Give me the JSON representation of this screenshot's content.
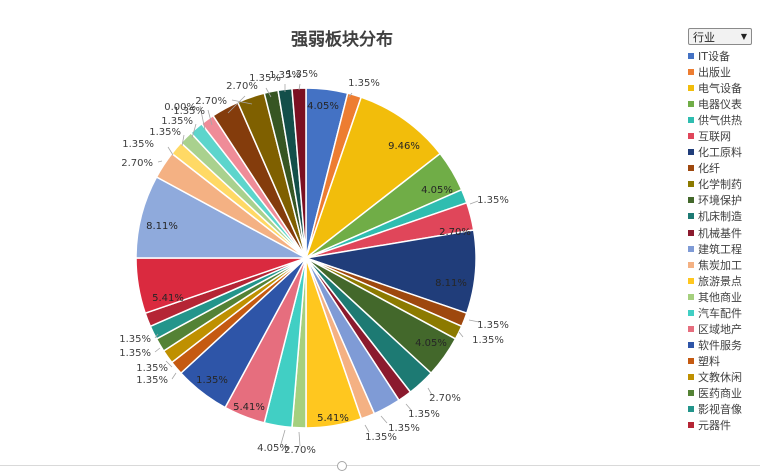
{
  "chart_data": {
    "type": "pie",
    "title": "强弱板块分布",
    "filter": {
      "label": "行业"
    },
    "slices": [
      {
        "name": "IT设备",
        "value": 4.05,
        "label": "4.05%",
        "color": "#4472C4"
      },
      {
        "name": "出版业",
        "value": 1.35,
        "label": "1.35%",
        "color": "#ED7D31"
      },
      {
        "name": "电气设备",
        "value": 9.46,
        "label": "9.46%",
        "color": "#F2BD0B"
      },
      {
        "name": "电器仪表",
        "value": 4.05,
        "label": "4.05%",
        "color": "#70AD47"
      },
      {
        "name": "供气供热",
        "value": 1.35,
        "label": "1.35%",
        "color": "#2FBDB0"
      },
      {
        "name": "互联网",
        "value": 2.7,
        "label": "2.70%",
        "color": "#E0465A"
      },
      {
        "name": "化工原料",
        "value": 8.11,
        "label": "8.11%",
        "color": "#203D7A"
      },
      {
        "name": "化纤",
        "value": 1.35,
        "label": "1.35%",
        "color": "#9E480E"
      },
      {
        "name": "化学制药",
        "value": 1.35,
        "label": "1.35%",
        "color": "#8C7A00"
      },
      {
        "name": "环境保护",
        "value": 4.05,
        "label": "4.05%",
        "color": "#43682B"
      },
      {
        "name": "机床制造",
        "value": 2.7,
        "label": "2.70%",
        "color": "#1D7A73"
      },
      {
        "name": "机械基件",
        "value": 1.35,
        "label": "1.35%",
        "color": "#8B1A2E"
      },
      {
        "name": "建筑工程",
        "value": 2.7,
        "label": "",
        "color": "#7F9BD6"
      },
      {
        "name": "焦炭加工",
        "value": 1.35,
        "label": "1.35%",
        "color": "#F4B183"
      },
      {
        "name": "旅游景点",
        "value": 5.41,
        "label": "5.41%",
        "color": "#FFC71F"
      },
      {
        "name": "其他商业",
        "value": 1.35,
        "label": "1.35%",
        "color": "#A5D07E"
      },
      {
        "name": "汽车配件",
        "value": 2.7,
        "label": "2.70%",
        "color": "#41CFC4"
      },
      {
        "name": "区域地产",
        "value": 4.05,
        "label": "4.05%",
        "color": "#E66E7E"
      },
      {
        "name": "软件服务",
        "value": 5.41,
        "label": "5.41%",
        "color": "#2E55A8"
      },
      {
        "name": "塑料",
        "value": 1.35,
        "label": "1.35%",
        "color": "#C55A11"
      },
      {
        "name": "文教休闲",
        "value": 1.35,
        "label": "1.35%",
        "color": "#BF9000"
      },
      {
        "name": "医药商业",
        "value": 1.35,
        "label": "1.35%",
        "color": "#548235"
      },
      {
        "name": "影视音像",
        "value": 1.35,
        "label": "1.35%",
        "color": "#23958B"
      },
      {
        "name": "元器件",
        "value": 1.35,
        "label": "1.35%",
        "color": "#B52535"
      },
      {
        "name": "",
        "value": 5.41,
        "label": "5.41%",
        "color": "#DA2A3F"
      },
      {
        "name": "",
        "value": 8.11,
        "label": "8.11%",
        "color": "#8FAADC"
      },
      {
        "name": "",
        "value": 2.7,
        "label": "2.70%",
        "color": "#F4B183"
      },
      {
        "name": "",
        "value": 1.35,
        "label": "1.35%",
        "color": "#FFD965"
      },
      {
        "name": "",
        "value": 1.35,
        "label": "1.35%",
        "color": "#A9D18E"
      },
      {
        "name": "",
        "value": 1.35,
        "label": "1.35%",
        "color": "#5DD5CC"
      },
      {
        "name": "",
        "value": 0.0,
        "label": "0.00%",
        "color": "#FFFFFF"
      },
      {
        "name": "",
        "value": 1.35,
        "label": "1.35%",
        "color": "#EF8C98"
      },
      {
        "name": "",
        "value": 2.7,
        "label": "2.70%",
        "color": "#843C0C"
      },
      {
        "name": "",
        "value": 2.7,
        "label": "2.70%",
        "color": "#7F6000"
      },
      {
        "name": "",
        "value": 1.35,
        "label": "1.35%",
        "color": "#375623"
      },
      {
        "name": "",
        "value": 1.35,
        "label": "1.35%",
        "color": "#134F4A"
      },
      {
        "name": "",
        "value": 1.35,
        "label": "1.35%",
        "color": "#7B1022"
      }
    ],
    "legend": {
      "position": "right"
    }
  }
}
